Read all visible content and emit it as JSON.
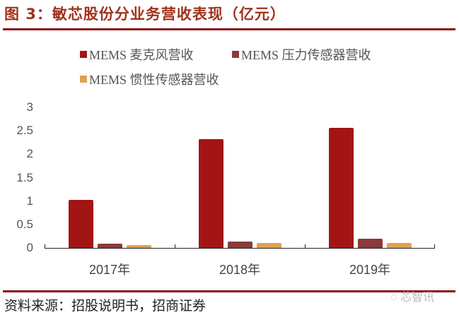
{
  "header": {
    "title": "图 3：敏芯股份分业务营收表现（亿元）"
  },
  "footer": {
    "source": "资料来源：招股说明书，招商证券",
    "watermark": "芯智讯"
  },
  "colors": {
    "accent": "#8b1414",
    "mic": "#a31515",
    "pressure": "#8b3a3a",
    "inertial": "#e2a050"
  },
  "chart_data": {
    "type": "bar",
    "title": "敏芯股份分业务营收表现（亿元）",
    "xlabel": "",
    "ylabel": "",
    "ylim": [
      0,
      3
    ],
    "yticks": [
      "0",
      "0.5",
      "1",
      "1.5",
      "2",
      "2.5",
      "3"
    ],
    "categories": [
      "2017年",
      "2018年",
      "2019年"
    ],
    "legend_position": "top",
    "grid": false,
    "series": [
      {
        "name": "MEMS 麦克风营收",
        "values": [
          1.02,
          2.32,
          2.57
        ]
      },
      {
        "name": "MEMS 压力传感器营收",
        "values": [
          0.09,
          0.14,
          0.19
        ]
      },
      {
        "name": "MEMS 惯性传感器营收",
        "values": [
          0.065,
          0.105,
          0.11
        ]
      }
    ]
  }
}
